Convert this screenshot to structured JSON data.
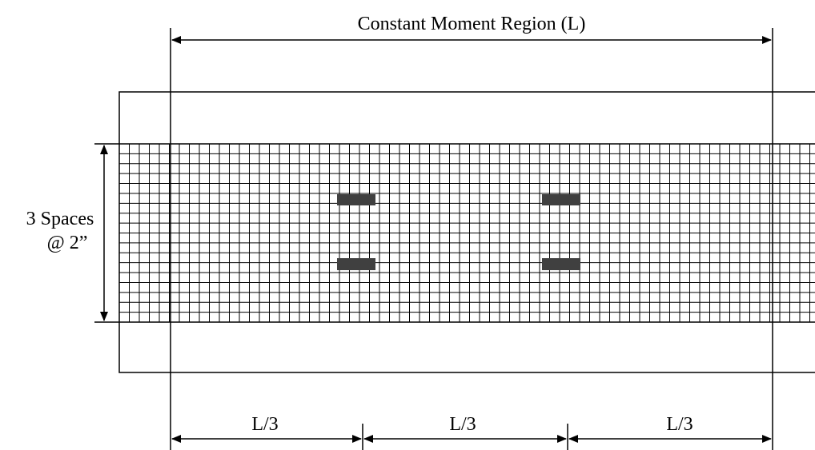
{
  "title": "Constant Moment Region (L)",
  "spacing_label": [
    "3 Spaces",
    "@ 2”"
  ],
  "segments": [
    "L/3",
    "L/3",
    "L/3"
  ]
}
